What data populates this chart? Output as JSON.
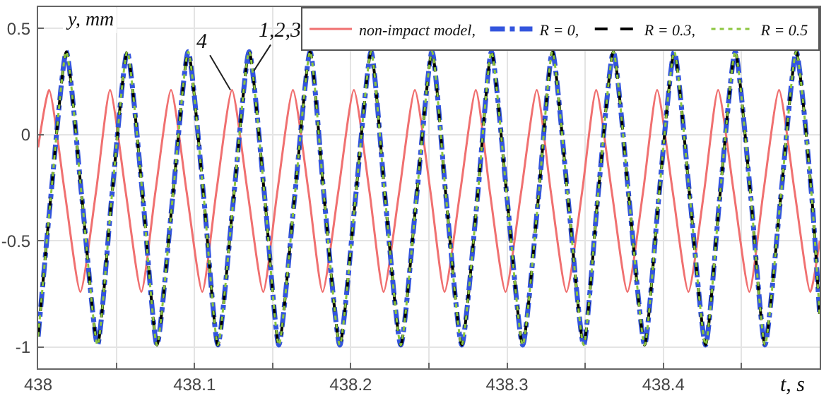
{
  "chart_data": {
    "type": "line",
    "xlabel": "t, s",
    "ylabel": "y, mm",
    "x": [
      438,
      438.008,
      438.018,
      438.028,
      438.038,
      438.047,
      438.057,
      438.067,
      438.076,
      438.086,
      438.096,
      438.106,
      438.115,
      438.125,
      438.135,
      438.145,
      438.154,
      438.164,
      438.174,
      438.183,
      438.193,
      438.203,
      438.213,
      438.222,
      438.232,
      438.242,
      438.252,
      438.261,
      438.271,
      438.281,
      438.29,
      438.3,
      438.31,
      438.32,
      438.329,
      438.339,
      438.349,
      438.358,
      438.368,
      438.378,
      438.388,
      438.397,
      438.407,
      438.417,
      438.427,
      438.436,
      438.446,
      438.456,
      438.465,
      438.475,
      438.485,
      438.495,
      438.5
    ],
    "series": [
      {
        "name": "non-impact model,",
        "color": "#f07070",
        "line_style": "solid",
        "x": [
          438,
          438.007,
          438.017,
          438.027,
          438.037,
          438.046,
          438.056,
          438.066,
          438.075,
          438.085,
          438.095,
          438.105,
          438.114,
          438.124,
          438.134,
          438.144,
          438.153,
          438.163,
          438.173,
          438.182,
          438.192,
          438.202,
          438.212,
          438.221,
          438.231,
          438.241,
          438.251,
          438.26,
          438.27,
          438.28,
          438.289,
          438.299,
          438.309,
          438.319,
          438.328,
          438.338,
          438.348,
          438.357,
          438.367,
          438.377,
          438.387,
          438.396,
          438.406,
          438.416,
          438.426,
          438.435,
          438.445,
          438.455,
          438.464,
          438.474,
          438.484,
          438.494,
          438.5
        ],
        "values": [
          -0.06,
          0.21,
          -0.27,
          -0.74,
          -0.27,
          0.21,
          -0.27,
          -0.74,
          -0.27,
          0.21,
          -0.27,
          -0.74,
          -0.27,
          0.21,
          -0.27,
          -0.74,
          -0.27,
          0.21,
          -0.27,
          -0.74,
          -0.27,
          0.21,
          -0.27,
          -0.74,
          -0.27,
          0.21,
          -0.27,
          -0.74,
          -0.27,
          0.21,
          -0.27,
          -0.74,
          -0.27,
          0.21,
          -0.27,
          -0.74,
          -0.27,
          0.21,
          -0.27,
          -0.74,
          -0.27,
          0.21,
          -0.27,
          -0.74,
          -0.27,
          0.21,
          -0.27,
          -0.74,
          -0.27,
          0.21,
          -0.27,
          -0.74,
          -0.5
        ]
      },
      {
        "name": "R = 0,",
        "color": "#3355dd",
        "line_style": "dashdot",
        "values": [
          -0.95,
          -0.3,
          0.39,
          -0.3,
          -0.99,
          -0.3,
          0.39,
          -0.3,
          -0.99,
          -0.3,
          0.39,
          -0.3,
          -0.99,
          -0.3,
          0.39,
          -0.3,
          -0.99,
          -0.3,
          0.39,
          -0.3,
          -0.99,
          -0.3,
          0.39,
          -0.3,
          -0.99,
          -0.3,
          0.39,
          -0.3,
          -0.99,
          -0.3,
          0.39,
          -0.3,
          -0.99,
          -0.3,
          0.39,
          -0.3,
          -0.99,
          -0.3,
          0.39,
          -0.3,
          -0.99,
          -0.3,
          0.39,
          -0.3,
          -0.99,
          -0.3,
          0.39,
          -0.3,
          -0.99,
          -0.3,
          0.39,
          -0.3,
          -0.85
        ]
      },
      {
        "name": "R = 0.3,",
        "color": "#000000",
        "line_style": "dashed",
        "values": [
          -0.95,
          -0.3,
          0.39,
          -0.3,
          -0.99,
          -0.3,
          0.39,
          -0.3,
          -0.99,
          -0.3,
          0.39,
          -0.3,
          -0.99,
          -0.3,
          0.39,
          -0.3,
          -0.99,
          -0.3,
          0.39,
          -0.3,
          -0.99,
          -0.3,
          0.39,
          -0.3,
          -0.99,
          -0.3,
          0.39,
          -0.3,
          -0.99,
          -0.3,
          0.39,
          -0.3,
          -0.99,
          -0.3,
          0.39,
          -0.3,
          -0.99,
          -0.3,
          0.39,
          -0.3,
          -0.99,
          -0.3,
          0.39,
          -0.3,
          -0.99,
          -0.3,
          0.39,
          -0.3,
          -0.99,
          -0.3,
          0.39,
          -0.3,
          -0.85
        ]
      },
      {
        "name": "R = 0.5",
        "color": "#8cc63f",
        "line_style": "dotted",
        "values": [
          -0.95,
          -0.3,
          0.39,
          -0.3,
          -0.99,
          -0.3,
          0.39,
          -0.3,
          -0.99,
          -0.3,
          0.39,
          -0.3,
          -0.99,
          -0.3,
          0.39,
          -0.3,
          -0.99,
          -0.3,
          0.39,
          -0.3,
          -0.99,
          -0.3,
          0.39,
          -0.3,
          -0.99,
          -0.3,
          0.39,
          -0.3,
          -0.99,
          -0.3,
          0.39,
          -0.3,
          -0.99,
          -0.3,
          0.39,
          -0.3,
          -0.99,
          -0.3,
          0.39,
          -0.3,
          -0.99,
          -0.3,
          0.39,
          -0.3,
          -0.99,
          -0.3,
          0.39,
          -0.3,
          -0.99,
          -0.3,
          0.39,
          -0.3,
          -0.85
        ]
      }
    ],
    "xlim": [
      438,
      438.5
    ],
    "xticks": [
      438,
      {
        "value": 438.05,
        "label": null
      },
      438.1,
      {
        "value": 438.15,
        "label": null
      },
      438.2,
      {
        "value": 438.25,
        "label": null
      },
      438.3,
      {
        "value": 438.35,
        "label": null
      },
      438.4,
      {
        "value": 438.45,
        "label": null
      }
    ],
    "ylim": [
      -1.1,
      0.6
    ],
    "yticks": [
      0.5,
      0,
      -0.5,
      -1
    ],
    "grid": true,
    "legend": "top right",
    "marker": "none",
    "annotations": [
      {
        "text": "4",
        "x": 438.123,
        "y": 0.21
      },
      {
        "text": "1,2,3",
        "x": 438.138,
        "y": 0.3
      }
    ]
  }
}
